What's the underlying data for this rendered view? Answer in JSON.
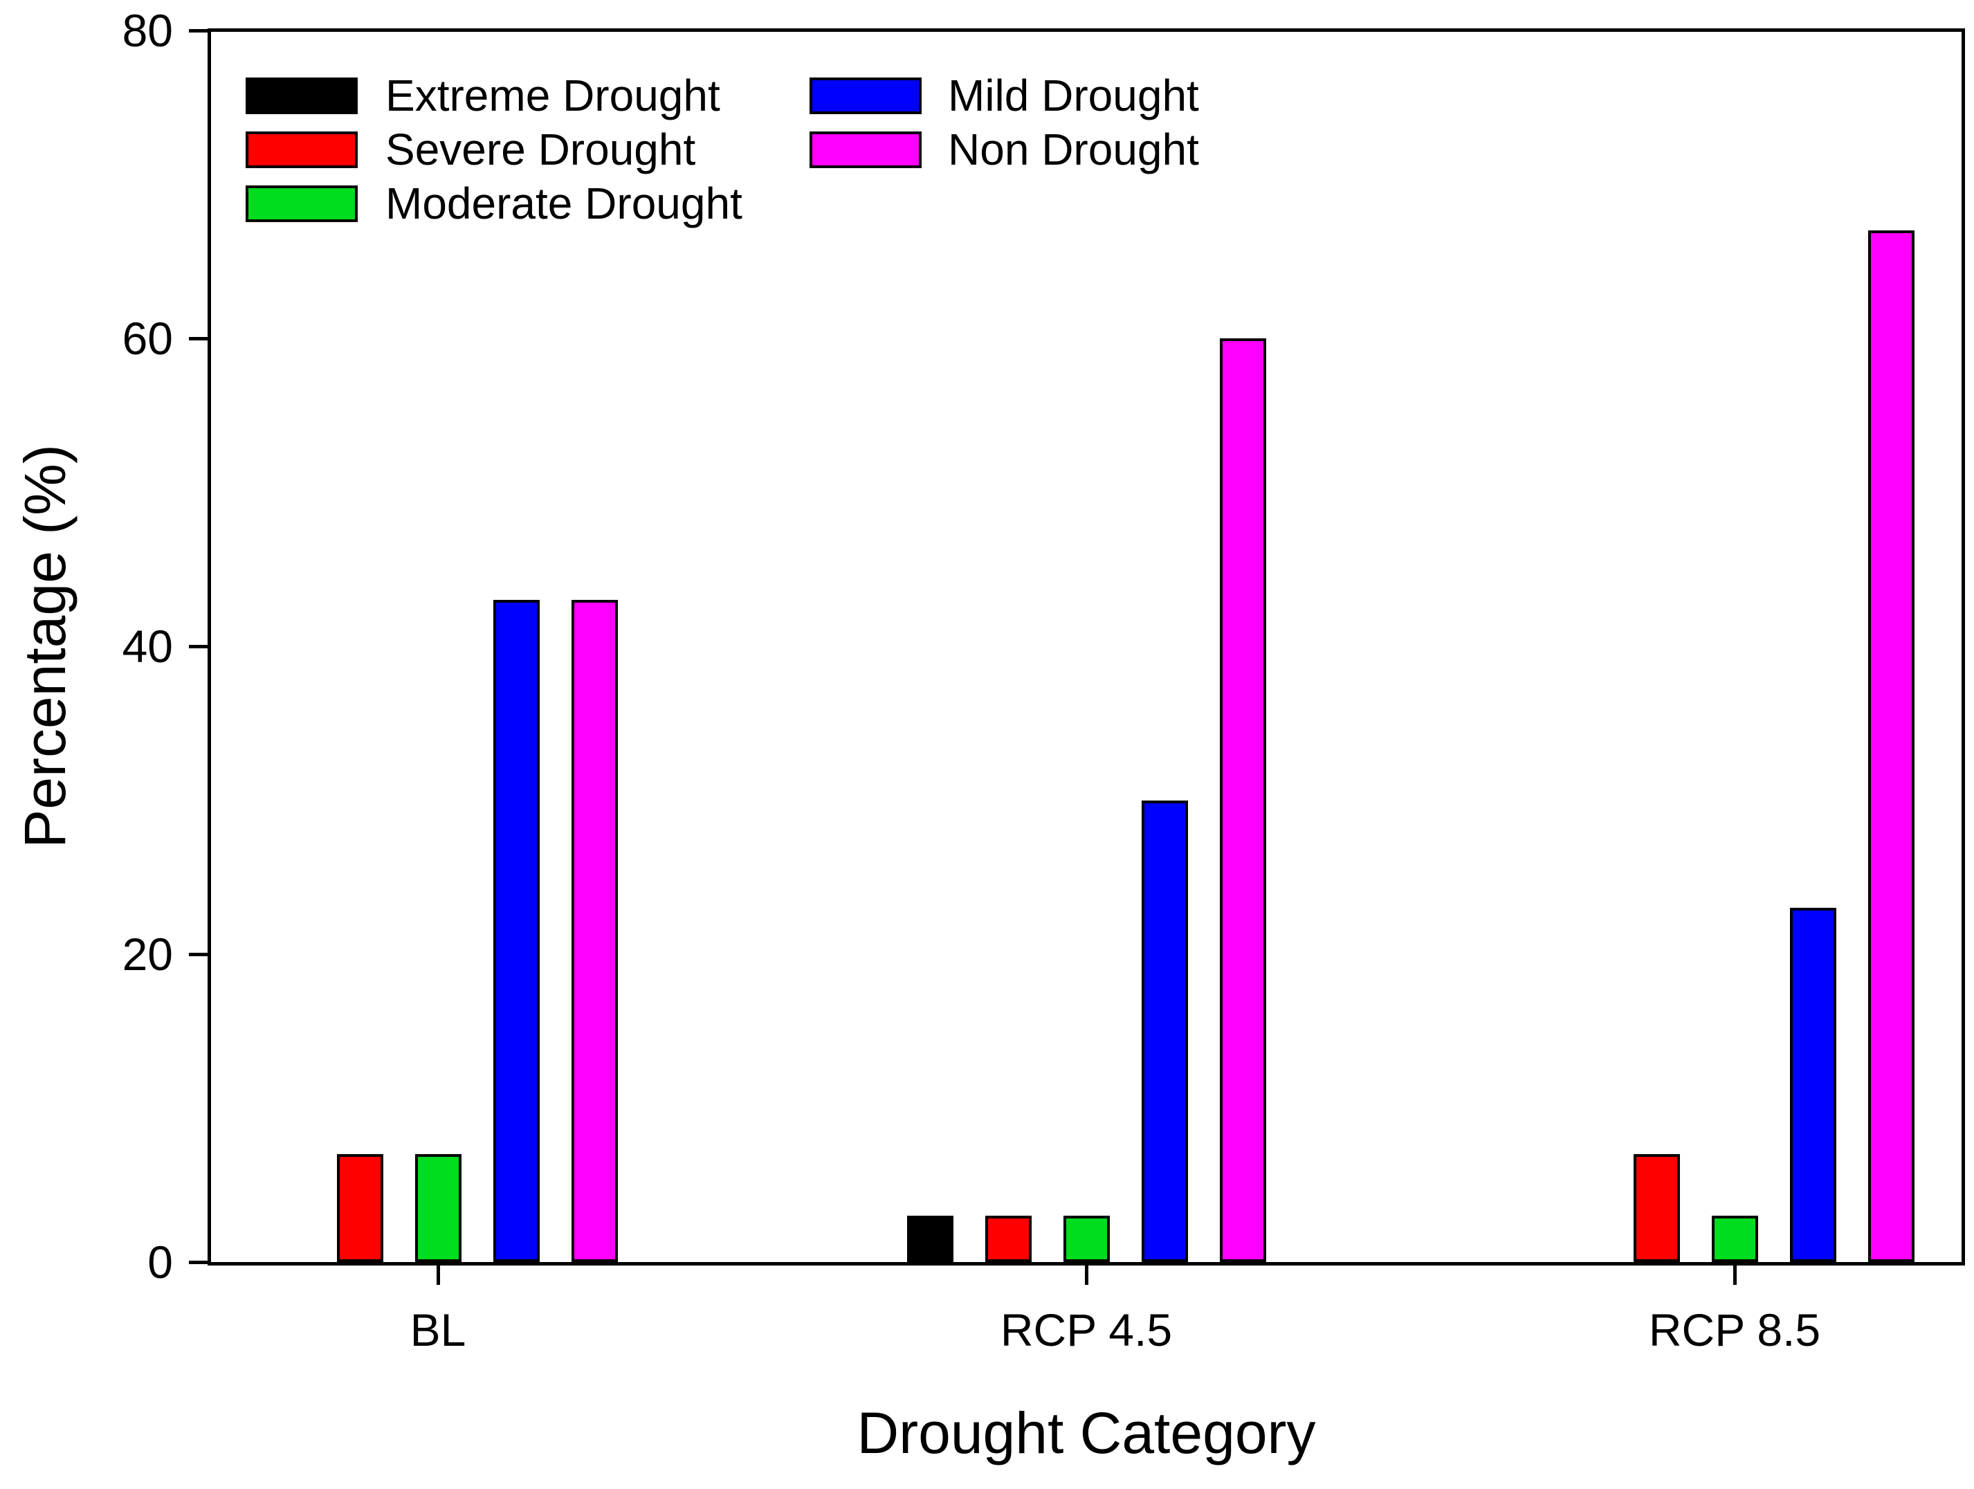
{
  "chart_data": {
    "type": "bar",
    "title": "",
    "xlabel": "Drought Category",
    "ylabel": "Percentage (%)",
    "categories": [
      "BL",
      "RCP 4.5",
      "RCP 8.5"
    ],
    "series": [
      {
        "name": "Extreme Drought",
        "color": "#000000",
        "values": [
          0,
          3,
          0
        ]
      },
      {
        "name": "Severe Drought",
        "color": "#FF0000",
        "values": [
          7,
          3,
          7
        ]
      },
      {
        "name": "Moderate Drought",
        "color": "#00DC1E",
        "values": [
          7,
          3,
          3
        ]
      },
      {
        "name": "Mild Drought",
        "color": "#0000FF",
        "values": [
          43,
          30,
          23
        ]
      },
      {
        "name": "Non Drought",
        "color": "#FF00FF",
        "values": [
          43,
          60,
          67
        ]
      }
    ],
    "ylim": [
      0,
      80
    ],
    "yticks": [
      0,
      20,
      40,
      60,
      80
    ],
    "grid": false,
    "legend_position": "top-left-inside",
    "legend_layout": "two-columns-column-major",
    "bar_outline_color": "#000000",
    "axis_color": "#000000",
    "background_color": "#FFFFFF"
  }
}
